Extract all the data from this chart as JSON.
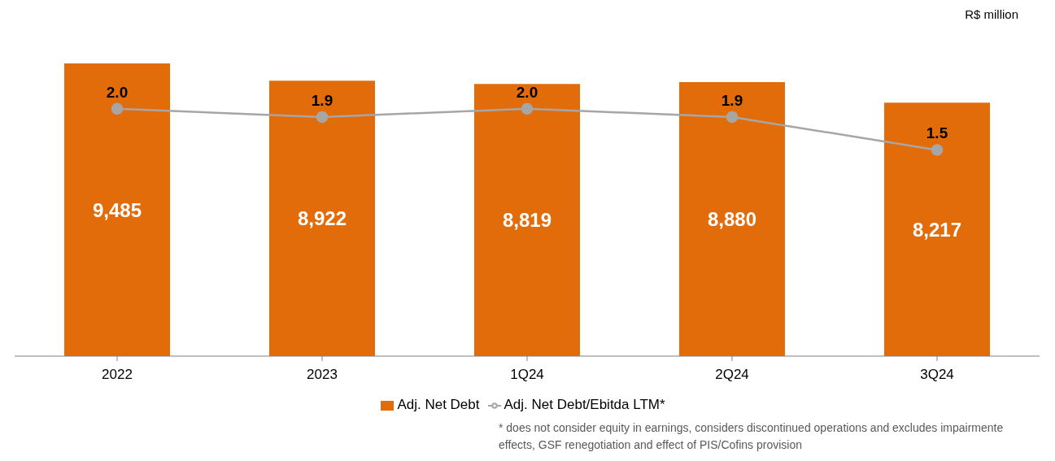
{
  "chart_data": {
    "type": "bar",
    "categories": [
      "2022",
      "2023",
      "1Q24",
      "2Q24",
      "3Q24"
    ],
    "series": [
      {
        "name": "Adj. Net Debt",
        "color": "#e36c0a",
        "values": [
          9485,
          8922,
          8819,
          8880,
          8217
        ],
        "value_labels": [
          "9,485",
          "8,922",
          "8,819",
          "8,880",
          "8,217"
        ]
      },
      {
        "name": "Adj. Net Debt/Ebitda LTM*",
        "type": "line",
        "axis": "y2",
        "color": "#a6a6a6",
        "values": [
          2.0,
          1.9,
          2.0,
          1.9,
          1.5
        ],
        "value_labels": [
          "2.0",
          "1.9",
          "2.0",
          "1.9",
          "1.5"
        ]
      }
    ],
    "tick_labels": "x",
    "legend": "bottom",
    "marker": "circle",
    "annotations": [
      "R$ million",
      "* does not consider equity in earnings, considers discontinued operations and excludes impairmente effects, GSF renegotiation and effect of PIS/Cofins provision"
    ]
  }
}
